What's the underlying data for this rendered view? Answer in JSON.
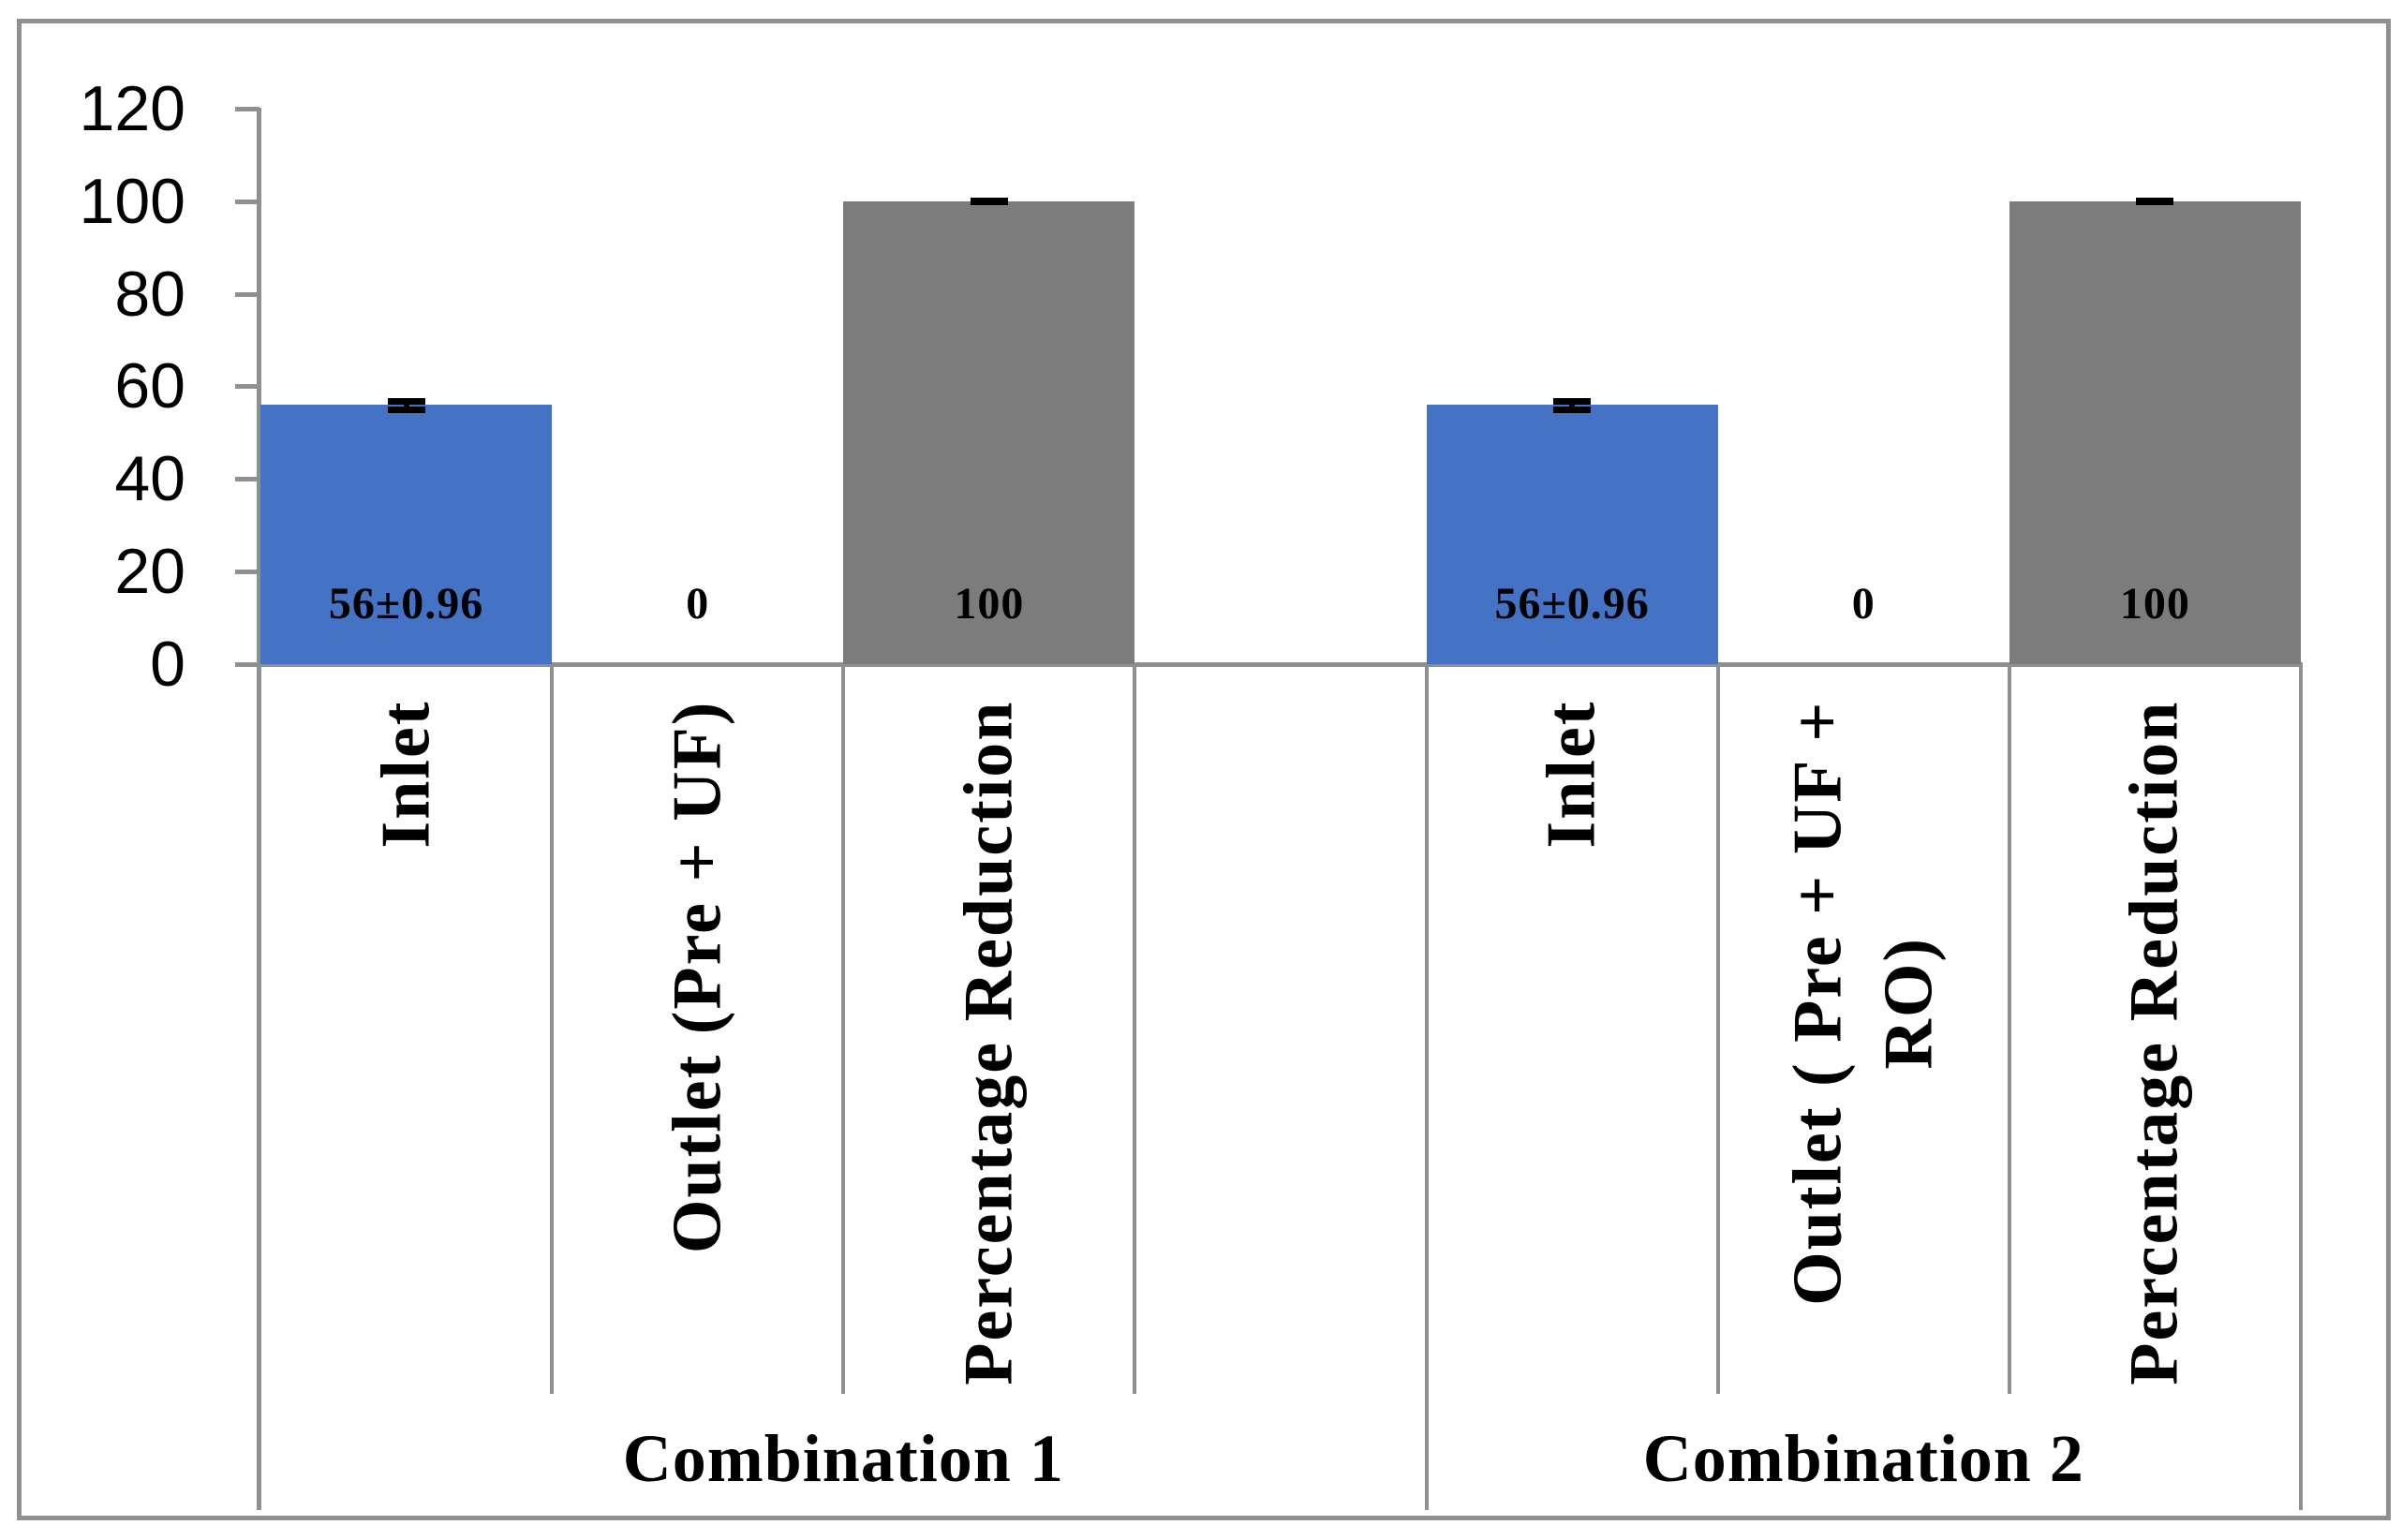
{
  "chart_data": {
    "type": "bar",
    "title": "",
    "xlabel": "",
    "ylabel": "",
    "y_axis": {
      "min": 0,
      "max": 120,
      "ticks": [
        120,
        100,
        80,
        60,
        40,
        20,
        0
      ],
      "gridlines": false
    },
    "legend": "none",
    "colors": {
      "blue": "#4472C4",
      "gray": "#7C7C7C",
      "axis_line": "#8F8F8F",
      "label": "#000000"
    },
    "groups": [
      {
        "label": "Combination 1",
        "span_slots": 4
      },
      {
        "label": "Combination 2",
        "span_slots": 3
      }
    ],
    "slots": [
      {
        "category": "Inlet",
        "group": "Combination 1",
        "value": 56,
        "error": 0.96,
        "label": "56±0.96",
        "color": "blue",
        "blank": false
      },
      {
        "category": "Outlet (Pre + UF)",
        "group": "Combination 1",
        "value": 0,
        "error": 0,
        "label": "0",
        "color": "blue",
        "blank": false
      },
      {
        "category": "Percentage Reduction",
        "group": "Combination 1",
        "value": 100,
        "error": 0.1,
        "label": "100",
        "color": "gray",
        "blank": false
      },
      {
        "category": "",
        "group": "Combination 1",
        "value": 0,
        "error": 0,
        "label": "",
        "color": "blue",
        "blank": true
      },
      {
        "category": "Inlet",
        "group": "Combination 2",
        "value": 56,
        "error": 0.96,
        "label": "56±0.96",
        "color": "blue",
        "blank": false
      },
      {
        "category": "Outlet ( Pre + UF +\nRO)",
        "group": "Combination 2",
        "value": 0,
        "error": 0,
        "label": "0",
        "color": "blue",
        "blank": false
      },
      {
        "category": "Percentage Reduction",
        "group": "Combination 2",
        "value": 100,
        "error": 0.1,
        "label": "100",
        "color": "gray",
        "blank": false
      }
    ]
  }
}
